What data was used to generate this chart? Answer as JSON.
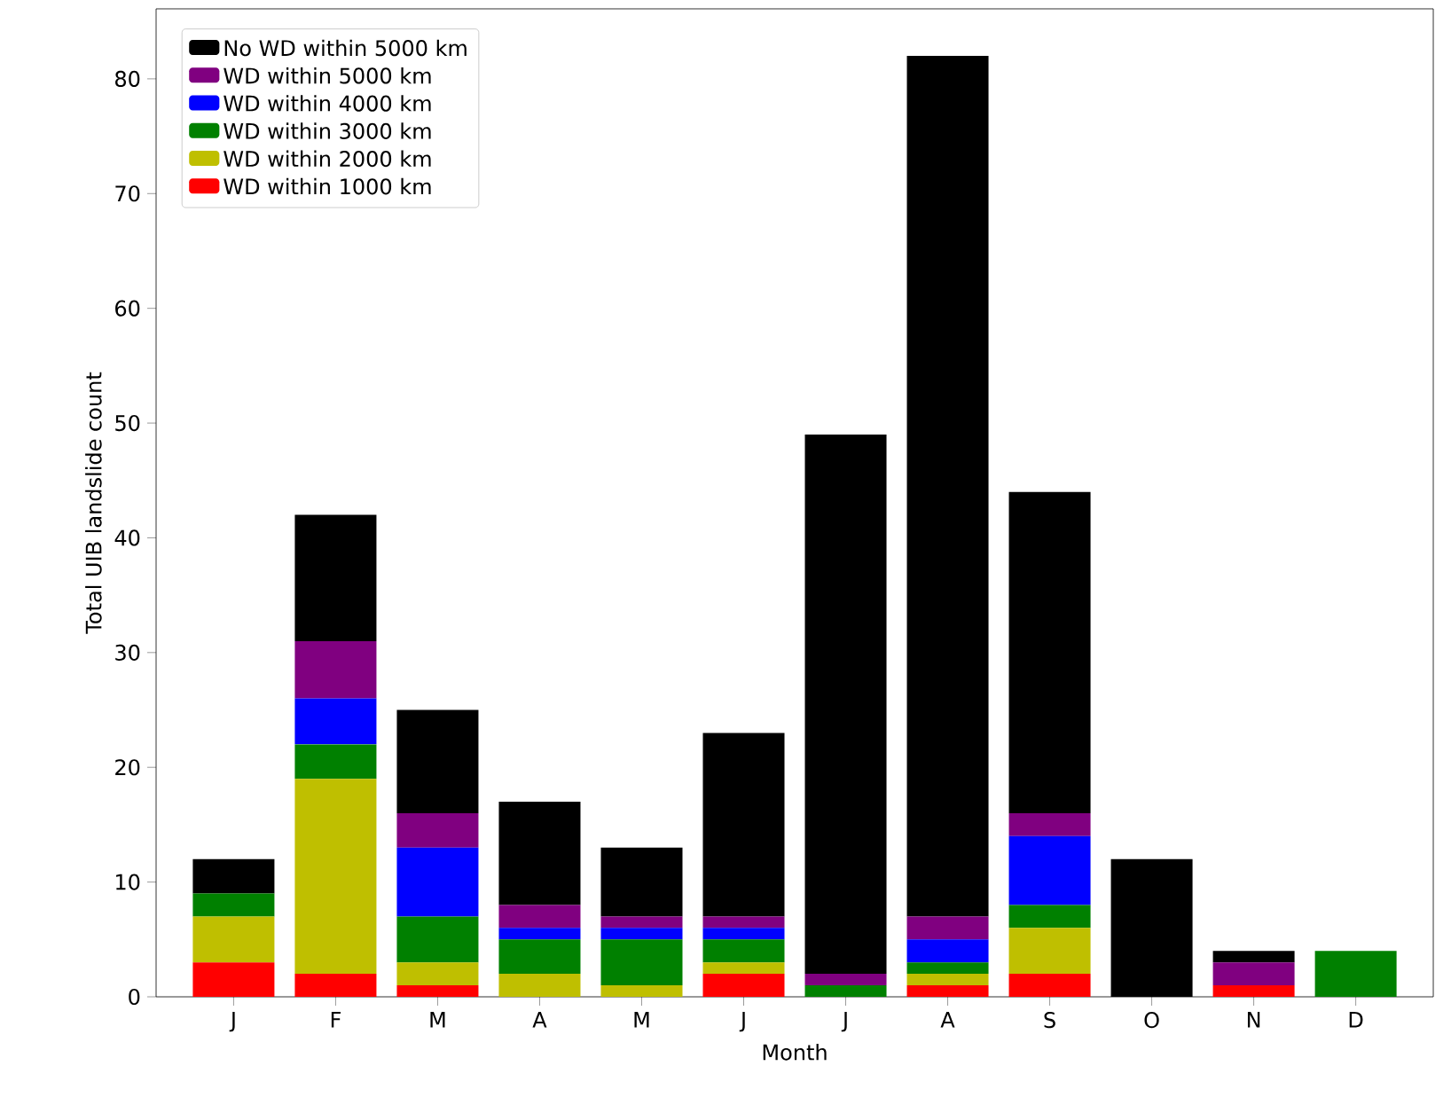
{
  "chart_data": {
    "type": "bar",
    "stacked": true,
    "xlabel": "Month",
    "ylabel": "Total UIB landslide count",
    "categories": [
      "J",
      "F",
      "M",
      "A",
      "M",
      "J",
      "J",
      "A",
      "S",
      "O",
      "N",
      "D"
    ],
    "ylim": [
      0,
      86.1
    ],
    "yticks": [
      0,
      10,
      20,
      30,
      40,
      50,
      60,
      70,
      80
    ],
    "legend": "top left",
    "grid": false,
    "series": [
      {
        "name": "WD within 1000 km",
        "color": "#ff0000",
        "values": [
          3,
          2,
          1,
          0,
          0,
          2,
          0,
          1,
          2,
          0,
          1,
          0
        ]
      },
      {
        "name": "WD within 2000 km",
        "color": "#bfbf00",
        "values": [
          4,
          17,
          2,
          2,
          1,
          1,
          0,
          1,
          4,
          0,
          0,
          0
        ]
      },
      {
        "name": "WD within 3000 km",
        "color": "#008000",
        "values": [
          2,
          3,
          4,
          3,
          4,
          2,
          1,
          1,
          2,
          0,
          0,
          4
        ]
      },
      {
        "name": "WD within 4000 km",
        "color": "#0000ff",
        "values": [
          0,
          4,
          6,
          1,
          1,
          1,
          0,
          2,
          6,
          0,
          0,
          0
        ]
      },
      {
        "name": "WD within 5000 km",
        "color": "#800080",
        "values": [
          0,
          5,
          3,
          2,
          1,
          1,
          1,
          2,
          2,
          0,
          2,
          0
        ]
      },
      {
        "name": "No WD within 5000 km",
        "color": "#000000",
        "values": [
          3,
          11,
          9,
          9,
          6,
          16,
          47,
          75,
          28,
          12,
          1,
          0
        ]
      }
    ]
  }
}
